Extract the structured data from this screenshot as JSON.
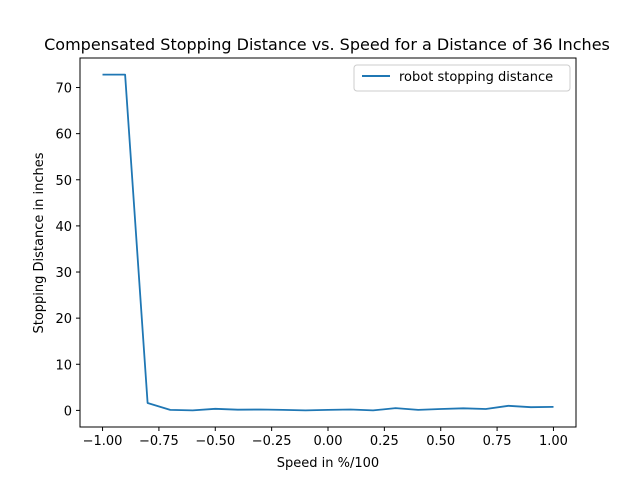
{
  "chart_data": {
    "type": "line",
    "title": "Compensated Stopping Distance vs. Speed for a Distance of 36 Inches",
    "xlabel": "Speed in %/100",
    "ylabel": "Stopping Distance in inches",
    "xlim": [
      -1.1,
      1.1
    ],
    "ylim": [
      -3.6,
      76.4
    ],
    "xticks": [
      -1.0,
      -0.75,
      -0.5,
      -0.25,
      0.0,
      0.25,
      0.5,
      0.75,
      1.0
    ],
    "xtick_labels": [
      "−1.00",
      "−0.75",
      "−0.50",
      "−0.25",
      "0.00",
      "0.25",
      "0.50",
      "0.75",
      "1.00"
    ],
    "yticks": [
      0,
      10,
      20,
      30,
      40,
      50,
      60,
      70
    ],
    "ytick_labels": [
      "0",
      "10",
      "20",
      "30",
      "40",
      "50",
      "60",
      "70"
    ],
    "grid": false,
    "legend_position": "top-right",
    "series": [
      {
        "name": "robot stopping distance",
        "color": "#1f77b4",
        "x": [
          -1.0,
          -0.9,
          -0.8,
          -0.7,
          -0.6,
          -0.5,
          -0.4,
          -0.3,
          -0.2,
          -0.1,
          0.0,
          0.1,
          0.2,
          0.3,
          0.4,
          0.5,
          0.6,
          0.7,
          0.8,
          0.9,
          1.0
        ],
        "y": [
          72.8,
          72.8,
          1.6,
          0.1,
          0.0,
          0.35,
          0.15,
          0.2,
          0.1,
          0.0,
          0.1,
          0.2,
          0.0,
          0.5,
          0.1,
          0.3,
          0.45,
          0.3,
          1.0,
          0.7,
          0.75
        ]
      }
    ]
  }
}
